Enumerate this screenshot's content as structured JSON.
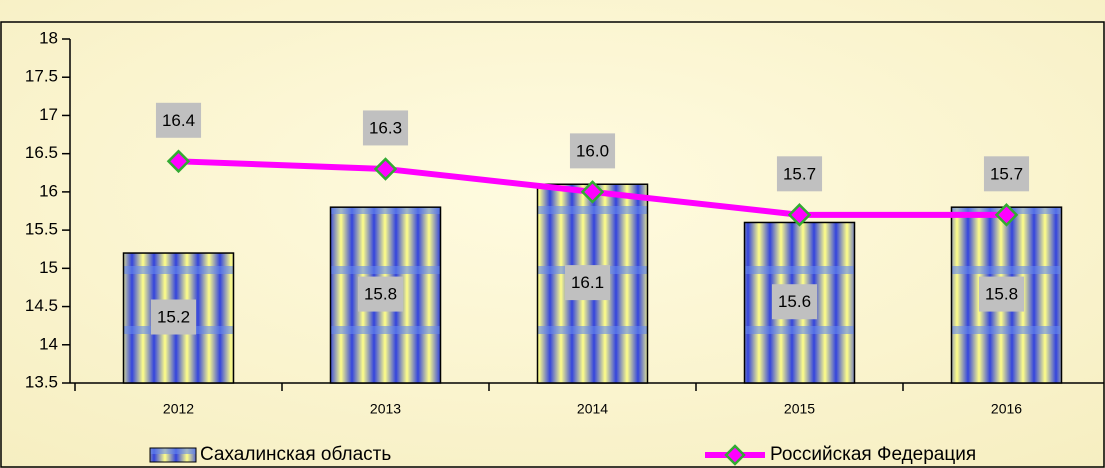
{
  "chart_data": {
    "type": "bar-line",
    "categories": [
      "2012",
      "2013",
      "2014",
      "2015",
      "2016"
    ],
    "series": [
      {
        "name": "Сахалинская область",
        "type": "bar",
        "color": "#3355dd",
        "values": [
          15.2,
          15.8,
          16.1,
          15.6,
          15.8
        ]
      },
      {
        "name": "Российская Федерация",
        "type": "line",
        "color": "#ff00ff",
        "marker_color": "#33aa33",
        "values": [
          16.4,
          16.3,
          16.0,
          15.7,
          15.7
        ],
        "value_labels": [
          "16.4",
          "16.3",
          "16.0",
          "15.7",
          "15.7"
        ]
      }
    ],
    "ylim": [
      13.5,
      18
    ],
    "yticks": [
      13.5,
      14,
      14.5,
      15,
      15.5,
      16,
      16.5,
      17,
      17.5,
      18
    ],
    "legend": "bottom"
  }
}
